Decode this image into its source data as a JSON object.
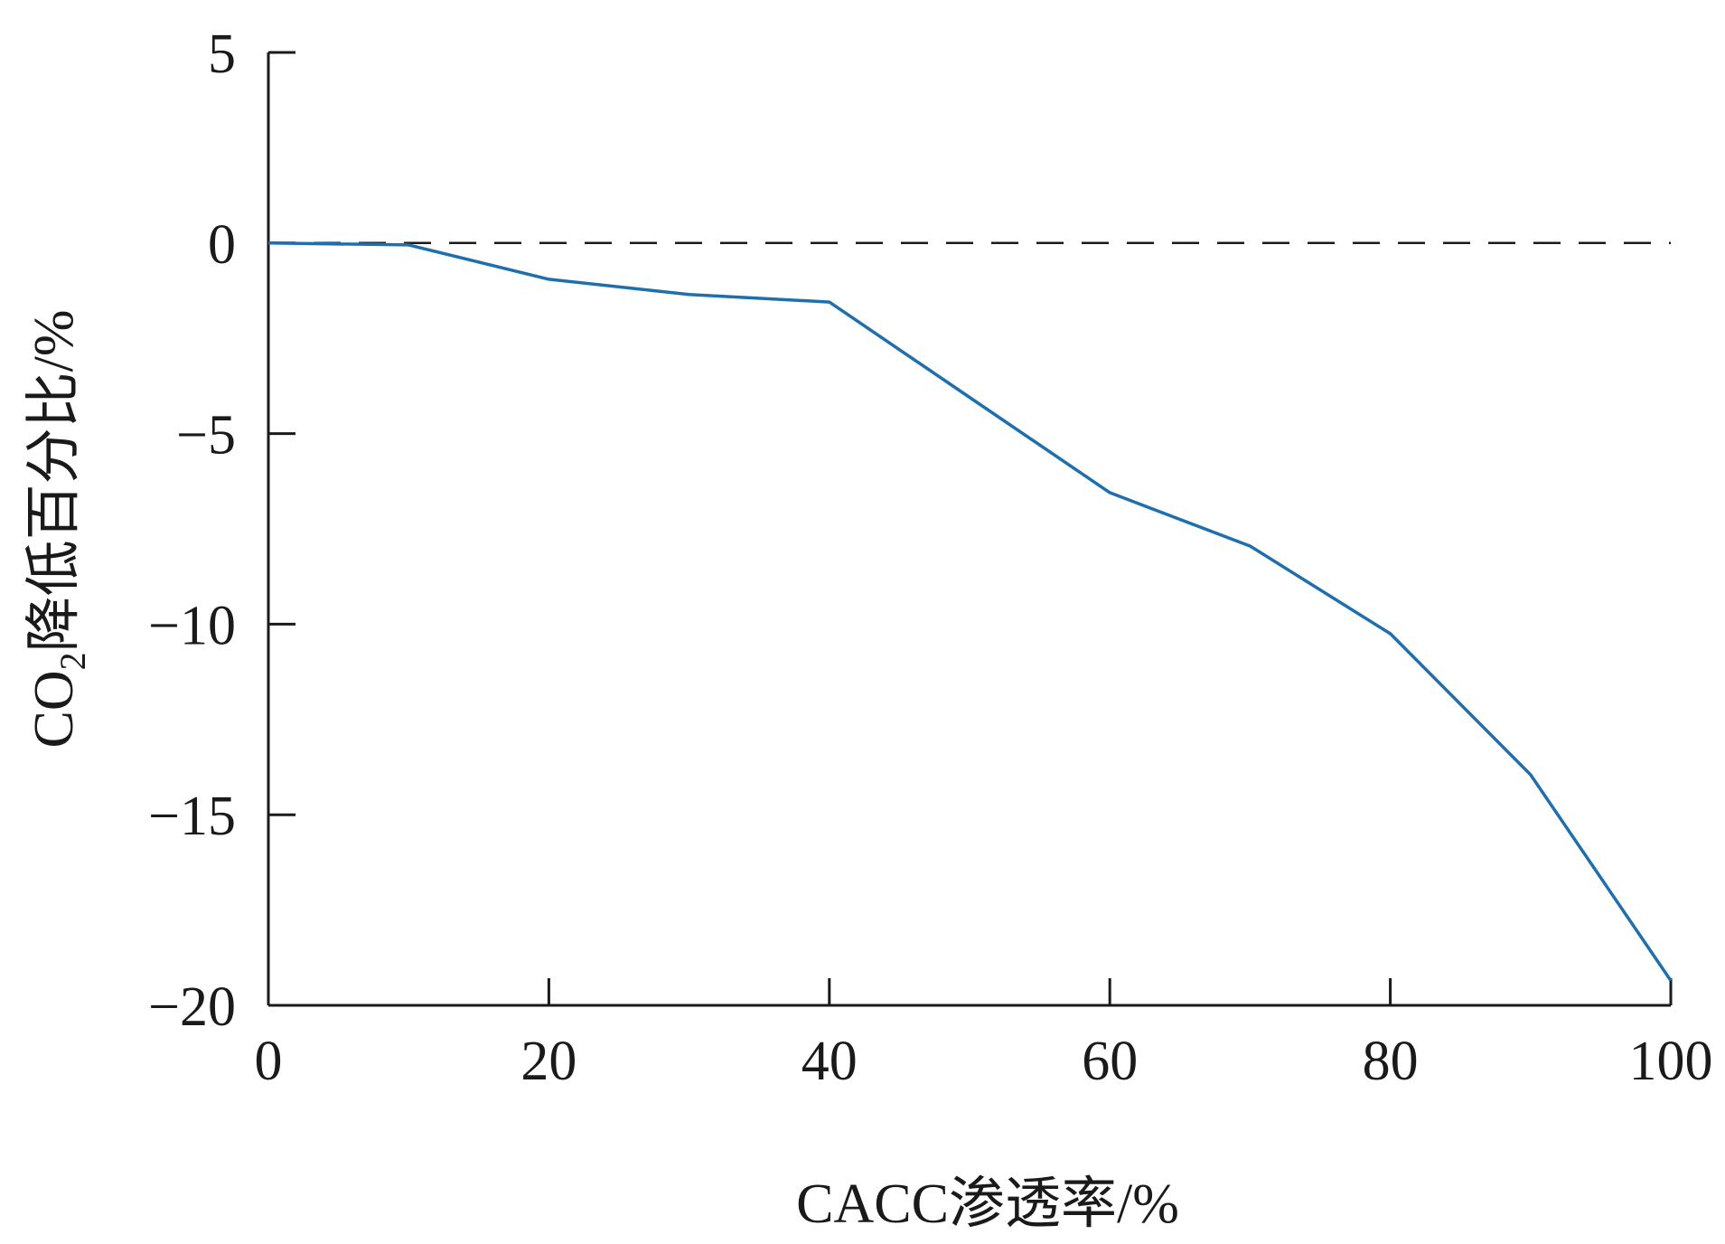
{
  "chart_data": {
    "type": "line",
    "xlabel": "CACC渗透率/%",
    "ylabel_main": "CO",
    "ylabel_sub": "2",
    "ylabel_rest": "降低百分比/%",
    "xlim": [
      0,
      100
    ],
    "ylim": [
      -20,
      5
    ],
    "x_ticks": [
      0,
      20,
      40,
      60,
      80,
      100
    ],
    "y_ticks": [
      5,
      0,
      -5,
      -10,
      -15,
      -20
    ],
    "x_tick_labels": [
      "0",
      "20",
      "40",
      "60",
      "80",
      "100"
    ],
    "y_tick_labels": [
      "5",
      "0",
      "−5",
      "−10",
      "−15",
      "−20"
    ],
    "reference_line": {
      "y": 0,
      "style": "dashed"
    },
    "series": [
      {
        "color": "#1f6fae",
        "x": [
          0,
          10,
          20,
          30,
          40,
          50,
          60,
          70,
          80,
          90,
          100
        ],
        "y": [
          0,
          -0.05,
          -0.95,
          -1.35,
          -1.55,
          -4.05,
          -6.55,
          -7.95,
          -10.25,
          -13.95,
          -19.35
        ]
      }
    ],
    "grid": false,
    "legend": "none"
  }
}
